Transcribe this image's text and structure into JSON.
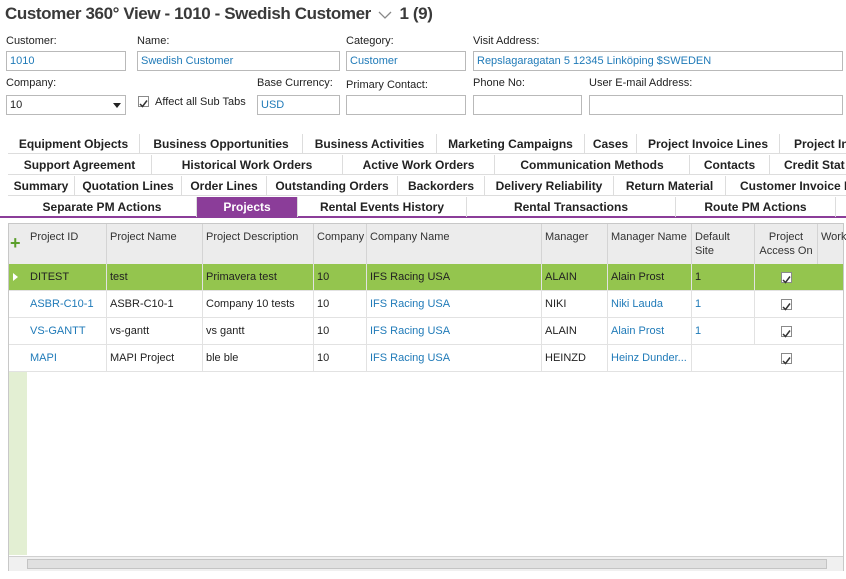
{
  "header": {
    "title": "Customer 360° View - 1010 - Swedish Customer",
    "record_count": "1 (9)"
  },
  "fields": [
    {
      "label": "Customer:",
      "value": "1010"
    },
    {
      "label": "Name:",
      "value": "Swedish Customer"
    },
    {
      "label": "Category:",
      "value": "Customer"
    },
    {
      "label": "Visit Address:",
      "value": "Repslagaragatan 5 12345 Linköping $SWEDEN"
    },
    {
      "label": "Company:",
      "value": "10"
    },
    {
      "label": "Base Currency:",
      "value": "USD"
    },
    {
      "label": "Primary Contact:"
    },
    {
      "label": "Phone No:"
    },
    {
      "label": "User E-mail Address:"
    }
  ],
  "checkbox": {
    "label": "Affect all Sub Tabs",
    "checked": true
  },
  "tabs": [
    [
      {
        "label": "Equipment Objects"
      },
      {
        "label": "Business Opportunities"
      },
      {
        "label": "Business Activities"
      },
      {
        "label": "Marketing Campaigns"
      },
      {
        "label": "Cases"
      },
      {
        "label": "Project Invoice Lines"
      },
      {
        "label": "Project In"
      }
    ],
    [
      {
        "label": "Support Agreement"
      },
      {
        "label": "Historical Work Orders"
      },
      {
        "label": "Active Work Orders"
      },
      {
        "label": "Communication Methods"
      },
      {
        "label": "Contacts"
      },
      {
        "label": "Credit Stat"
      }
    ],
    [
      {
        "label": "Summary"
      },
      {
        "label": "Quotation Lines"
      },
      {
        "label": "Order Lines"
      },
      {
        "label": "Outstanding Orders"
      },
      {
        "label": "Backorders"
      },
      {
        "label": "Delivery Reliability"
      },
      {
        "label": "Return Material"
      },
      {
        "label": "Customer Invoice L"
      }
    ],
    [
      {
        "label": "Separate PM Actions"
      },
      {
        "label": "Projects",
        "active": true
      },
      {
        "label": "Rental Events History"
      },
      {
        "label": "Rental Transactions"
      },
      {
        "label": "Route PM Actions"
      }
    ]
  ],
  "table": {
    "columns": [
      "Project ID",
      "Project Name",
      "Project Description",
      "Company",
      "Company Name",
      "Manager",
      "Manager Name",
      "Default Site",
      "Project Access On",
      "Work"
    ],
    "rows": [
      {
        "cells": [
          "DITEST",
          "test",
          "Primavera test",
          "10",
          "IFS Racing USA",
          "ALAIN",
          "Alain Prost",
          "1"
        ],
        "access": true,
        "selected": true
      },
      {
        "cells": [
          "ASBR-C10-1",
          "ASBR-C10-1",
          "Company 10 tests",
          "10",
          "IFS Racing USA",
          "NIKI",
          "Niki Lauda",
          "1"
        ],
        "access": true
      },
      {
        "cells": [
          "VS-GANTT",
          "vs-gantt",
          "vs gantt",
          "10",
          "IFS Racing USA",
          "ALAIN",
          "Alain Prost",
          "1"
        ],
        "access": true
      },
      {
        "cells": [
          "MAPI",
          "MAPI Project",
          "ble ble",
          "10",
          "IFS Racing USA",
          "HEINZD",
          "Heinz Dunder..."
        ],
        "access": true
      }
    ]
  }
}
